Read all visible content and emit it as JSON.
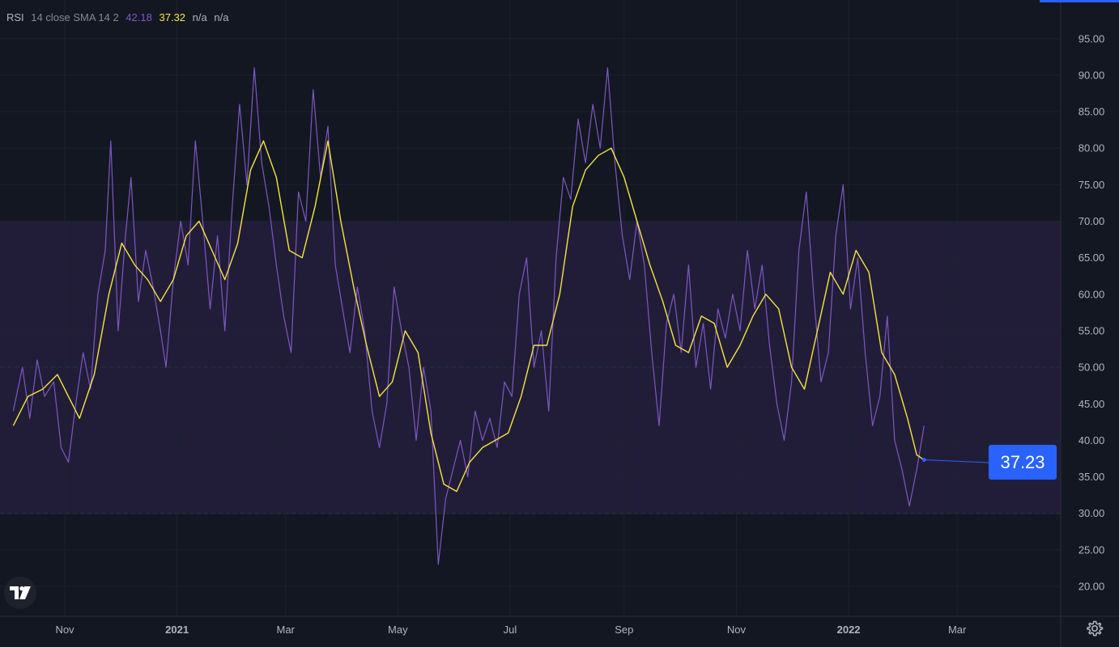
{
  "legend": {
    "name": "RSI",
    "params": "14 close SMA 14 2",
    "rsi_value": "42.18",
    "sma_value": "37.32",
    "na1": "n/a",
    "na2": "n/a"
  },
  "price_badge": "37.23",
  "colors": {
    "background": "#131722",
    "band": "#211d38",
    "rsi": "#7e57c2",
    "sma": "#f7e542",
    "grid": "#1e2230",
    "accent": "#2962ff"
  },
  "chart_data": {
    "type": "line",
    "xlabel": "",
    "ylabel": "",
    "ylim": [
      17,
      100
    ],
    "y_ticks": [
      "95.00",
      "90.00",
      "85.00",
      "80.00",
      "75.00",
      "70.00",
      "65.00",
      "60.00",
      "55.00",
      "50.00",
      "45.00",
      "40.00",
      "35.00",
      "30.00",
      "25.00",
      "20.00"
    ],
    "x_ticks": [
      {
        "label": "Nov",
        "date": "2020-11-01",
        "bold": false
      },
      {
        "label": "2021",
        "date": "2021-01-01",
        "bold": true
      },
      {
        "label": "Mar",
        "date": "2021-03-01",
        "bold": false
      },
      {
        "label": "May",
        "date": "2021-05-01",
        "bold": false
      },
      {
        "label": "Jul",
        "date": "2021-07-01",
        "bold": false
      },
      {
        "label": "Sep",
        "date": "2021-09-01",
        "bold": false
      },
      {
        "label": "Nov",
        "date": "2021-11-01",
        "bold": false
      },
      {
        "label": "2022",
        "date": "2022-01-01",
        "bold": true
      },
      {
        "label": "Mar",
        "date": "2022-03-01",
        "bold": false
      }
    ],
    "bands": {
      "upper": 70,
      "middle": 50,
      "lower": 30
    },
    "grid": true,
    "legend_position": "top-left",
    "series": [
      {
        "name": "RSI",
        "points": [
          [
            "2020-10-04",
            44
          ],
          [
            "2020-10-09",
            50
          ],
          [
            "2020-10-13",
            43
          ],
          [
            "2020-10-17",
            51
          ],
          [
            "2020-10-21",
            46
          ],
          [
            "2020-10-26",
            48
          ],
          [
            "2020-10-30",
            39
          ],
          [
            "2020-11-03",
            37
          ],
          [
            "2020-11-07",
            45
          ],
          [
            "2020-11-11",
            52
          ],
          [
            "2020-11-15",
            47
          ],
          [
            "2020-11-19",
            60
          ],
          [
            "2020-11-23",
            66
          ],
          [
            "2020-11-26",
            81
          ],
          [
            "2020-11-30",
            55
          ],
          [
            "2020-12-04",
            68
          ],
          [
            "2020-12-07",
            76
          ],
          [
            "2020-12-11",
            59
          ],
          [
            "2020-12-15",
            66
          ],
          [
            "2020-12-19",
            61
          ],
          [
            "2020-12-23",
            55
          ],
          [
            "2020-12-26",
            50
          ],
          [
            "2020-12-30",
            62
          ],
          [
            "2021-01-03",
            70
          ],
          [
            "2021-01-07",
            64
          ],
          [
            "2021-01-11",
            81
          ],
          [
            "2021-01-15",
            70
          ],
          [
            "2021-01-19",
            58
          ],
          [
            "2021-01-23",
            68
          ],
          [
            "2021-01-27",
            55
          ],
          [
            "2021-01-31",
            72
          ],
          [
            "2021-02-04",
            86
          ],
          [
            "2021-02-08",
            75
          ],
          [
            "2021-02-12",
            91
          ],
          [
            "2021-02-16",
            78
          ],
          [
            "2021-02-20",
            72
          ],
          [
            "2021-02-24",
            64
          ],
          [
            "2021-02-28",
            57
          ],
          [
            "2021-03-04",
            52
          ],
          [
            "2021-03-08",
            74
          ],
          [
            "2021-03-12",
            70
          ],
          [
            "2021-03-16",
            88
          ],
          [
            "2021-03-20",
            76
          ],
          [
            "2021-03-24",
            83
          ],
          [
            "2021-03-28",
            64
          ],
          [
            "2021-04-01",
            58
          ],
          [
            "2021-04-05",
            52
          ],
          [
            "2021-04-09",
            61
          ],
          [
            "2021-04-13",
            55
          ],
          [
            "2021-04-17",
            44
          ],
          [
            "2021-04-21",
            39
          ],
          [
            "2021-04-25",
            45
          ],
          [
            "2021-04-29",
            61
          ],
          [
            "2021-05-03",
            55
          ],
          [
            "2021-05-07",
            50
          ],
          [
            "2021-05-11",
            40
          ],
          [
            "2021-05-15",
            50
          ],
          [
            "2021-05-19",
            44
          ],
          [
            "2021-05-23",
            23
          ],
          [
            "2021-05-27",
            32
          ],
          [
            "2021-05-31",
            36
          ],
          [
            "2021-06-04",
            40
          ],
          [
            "2021-06-08",
            35
          ],
          [
            "2021-06-12",
            44
          ],
          [
            "2021-06-16",
            40
          ],
          [
            "2021-06-20",
            43
          ],
          [
            "2021-06-24",
            39
          ],
          [
            "2021-06-28",
            48
          ],
          [
            "2021-07-02",
            46
          ],
          [
            "2021-07-06",
            60
          ],
          [
            "2021-07-10",
            65
          ],
          [
            "2021-07-14",
            50
          ],
          [
            "2021-07-18",
            55
          ],
          [
            "2021-07-22",
            44
          ],
          [
            "2021-07-26",
            65
          ],
          [
            "2021-07-30",
            76
          ],
          [
            "2021-08-03",
            73
          ],
          [
            "2021-08-07",
            84
          ],
          [
            "2021-08-11",
            78
          ],
          [
            "2021-08-15",
            86
          ],
          [
            "2021-08-19",
            80
          ],
          [
            "2021-08-23",
            91
          ],
          [
            "2021-08-27",
            78
          ],
          [
            "2021-08-31",
            68
          ],
          [
            "2021-09-04",
            62
          ],
          [
            "2021-09-08",
            70
          ],
          [
            "2021-09-12",
            64
          ],
          [
            "2021-09-16",
            52
          ],
          [
            "2021-09-20",
            42
          ],
          [
            "2021-09-24",
            56
          ],
          [
            "2021-09-28",
            60
          ],
          [
            "2021-10-02",
            52
          ],
          [
            "2021-10-06",
            64
          ],
          [
            "2021-10-10",
            50
          ],
          [
            "2021-10-14",
            56
          ],
          [
            "2021-10-18",
            47
          ],
          [
            "2021-10-22",
            58
          ],
          [
            "2021-10-26",
            54
          ],
          [
            "2021-10-30",
            60
          ],
          [
            "2021-11-03",
            55
          ],
          [
            "2021-11-07",
            66
          ],
          [
            "2021-11-11",
            58
          ],
          [
            "2021-11-15",
            64
          ],
          [
            "2021-11-19",
            53
          ],
          [
            "2021-11-23",
            45
          ],
          [
            "2021-11-27",
            40
          ],
          [
            "2021-12-01",
            48
          ],
          [
            "2021-12-05",
            66
          ],
          [
            "2021-12-09",
            74
          ],
          [
            "2021-12-13",
            60
          ],
          [
            "2021-12-17",
            48
          ],
          [
            "2021-12-21",
            52
          ],
          [
            "2021-12-25",
            68
          ],
          [
            "2021-12-29",
            75
          ],
          [
            "2022-01-02",
            58
          ],
          [
            "2022-01-06",
            65
          ],
          [
            "2022-01-10",
            52
          ],
          [
            "2022-01-14",
            42
          ],
          [
            "2022-01-18",
            46
          ],
          [
            "2022-01-22",
            57
          ],
          [
            "2022-01-26",
            40
          ],
          [
            "2022-01-30",
            36
          ],
          [
            "2022-02-03",
            31
          ],
          [
            "2022-02-07",
            36
          ],
          [
            "2022-02-11",
            42
          ]
        ]
      },
      {
        "name": "SMA",
        "points": [
          [
            "2020-10-04",
            42
          ],
          [
            "2020-10-12",
            46
          ],
          [
            "2020-10-20",
            47
          ],
          [
            "2020-10-28",
            49
          ],
          [
            "2020-11-05",
            45
          ],
          [
            "2020-11-09",
            43
          ],
          [
            "2020-11-17",
            49
          ],
          [
            "2020-11-25",
            60
          ],
          [
            "2020-12-02",
            67
          ],
          [
            "2020-12-09",
            64
          ],
          [
            "2020-12-16",
            62
          ],
          [
            "2020-12-23",
            59
          ],
          [
            "2020-12-30",
            62
          ],
          [
            "2021-01-06",
            68
          ],
          [
            "2021-01-13",
            70
          ],
          [
            "2021-01-20",
            66
          ],
          [
            "2021-01-27",
            62
          ],
          [
            "2021-02-03",
            67
          ],
          [
            "2021-02-10",
            77
          ],
          [
            "2021-02-17",
            81
          ],
          [
            "2021-02-24",
            76
          ],
          [
            "2021-03-03",
            66
          ],
          [
            "2021-03-10",
            65
          ],
          [
            "2021-03-17",
            72
          ],
          [
            "2021-03-24",
            81
          ],
          [
            "2021-03-31",
            70
          ],
          [
            "2021-04-07",
            61
          ],
          [
            "2021-04-14",
            53
          ],
          [
            "2021-04-21",
            46
          ],
          [
            "2021-04-28",
            48
          ],
          [
            "2021-05-05",
            55
          ],
          [
            "2021-05-12",
            52
          ],
          [
            "2021-05-19",
            41
          ],
          [
            "2021-05-26",
            34
          ],
          [
            "2021-06-02",
            33
          ],
          [
            "2021-06-09",
            37
          ],
          [
            "2021-06-16",
            39
          ],
          [
            "2021-06-23",
            40
          ],
          [
            "2021-06-30",
            41
          ],
          [
            "2021-07-07",
            46
          ],
          [
            "2021-07-14",
            53
          ],
          [
            "2021-07-21",
            53
          ],
          [
            "2021-07-28",
            60
          ],
          [
            "2021-08-04",
            72
          ],
          [
            "2021-08-11",
            77
          ],
          [
            "2021-08-18",
            79
          ],
          [
            "2021-08-25",
            80
          ],
          [
            "2021-09-01",
            76
          ],
          [
            "2021-09-08",
            70
          ],
          [
            "2021-09-15",
            64
          ],
          [
            "2021-09-22",
            59
          ],
          [
            "2021-09-29",
            53
          ],
          [
            "2021-10-06",
            52
          ],
          [
            "2021-10-13",
            57
          ],
          [
            "2021-10-20",
            56
          ],
          [
            "2021-10-27",
            50
          ],
          [
            "2021-11-03",
            53
          ],
          [
            "2021-11-10",
            57
          ],
          [
            "2021-11-17",
            60
          ],
          [
            "2021-11-24",
            58
          ],
          [
            "2021-12-01",
            50
          ],
          [
            "2021-12-08",
            47
          ],
          [
            "2021-12-15",
            55
          ],
          [
            "2021-12-22",
            63
          ],
          [
            "2021-12-29",
            60
          ],
          [
            "2022-01-05",
            66
          ],
          [
            "2022-01-12",
            63
          ],
          [
            "2022-01-19",
            52
          ],
          [
            "2022-01-26",
            49
          ],
          [
            "2022-02-02",
            43
          ],
          [
            "2022-02-07",
            38
          ],
          [
            "2022-02-11",
            37.32
          ]
        ]
      }
    ]
  }
}
